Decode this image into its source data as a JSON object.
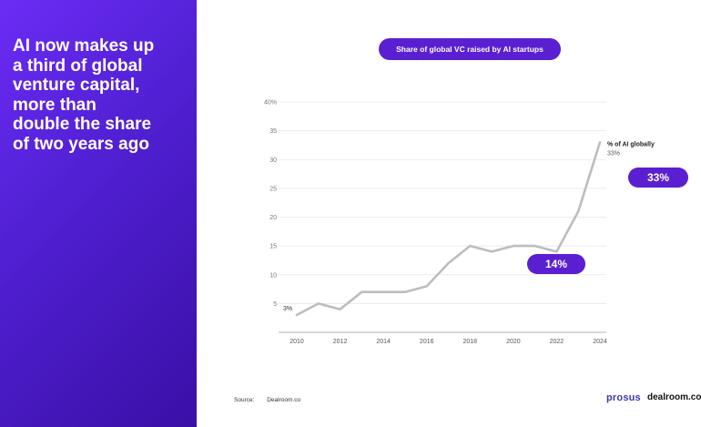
{
  "headline": {
    "lines": [
      "AI now makes up",
      "a third of global",
      "venture capital,",
      "more than",
      "double the share",
      "of two years ago"
    ]
  },
  "chart_data": {
    "type": "line",
    "title": "Share of global VC raised by AI startups",
    "x": [
      2010,
      2011,
      2012,
      2013,
      2014,
      2015,
      2016,
      2017,
      2018,
      2019,
      2020,
      2021,
      2022,
      2023,
      2024
    ],
    "series": [
      {
        "name": "% of AI globally",
        "values": [
          3,
          5,
          4,
          7,
          7,
          7,
          8,
          12,
          15,
          14,
          15,
          15,
          14,
          21,
          33
        ],
        "color": "#bdbdbd"
      }
    ],
    "xticks": [
      "2010",
      "2012",
      "2014",
      "2016",
      "2018",
      "2020",
      "2022",
      "2024"
    ],
    "yticks": [
      "5",
      "10",
      "15",
      "20",
      "25",
      "30",
      "35",
      "40%"
    ],
    "ylim": [
      0,
      40
    ],
    "grid": true,
    "start_label": "3%",
    "end_label": "% of AI globally",
    "end_value_label": "33%"
  },
  "callouts": {
    "c2022": "14%",
    "c2024": "33%"
  },
  "footer": {
    "source_label": "Source:",
    "source_value": "Dealroom.co",
    "logo_prosus": "prosus",
    "logo_dealroom": "dealroom.co"
  },
  "colors": {
    "accent": "#5a1fd1",
    "line": "#bdbdbd",
    "grid": "#e6e6e6"
  }
}
